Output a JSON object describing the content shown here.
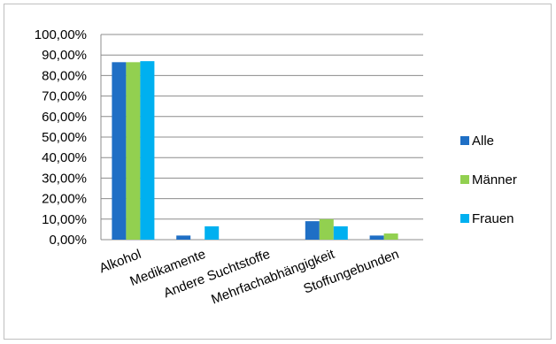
{
  "chart_data": {
    "type": "bar",
    "categories": [
      "Alkohol",
      "Medikamente",
      "Andere Suchtstoffe",
      "Mehrfachabhängigkeit",
      "Stoffungebunden"
    ],
    "series": [
      {
        "name": "Alle",
        "color": "#1f6fc5",
        "values": [
          86.5,
          2.0,
          0.0,
          9.0,
          2.0
        ]
      },
      {
        "name": "Männer",
        "color": "#92d050",
        "values": [
          86.5,
          0.0,
          0.0,
          10.0,
          3.0
        ]
      },
      {
        "name": "Frauen",
        "color": "#00b0f0",
        "values": [
          87.0,
          6.5,
          0.0,
          6.5,
          0.0
        ]
      }
    ],
    "ylim": [
      0,
      100
    ],
    "yticks": [
      "0,00%",
      "10,00%",
      "20,00%",
      "30,00%",
      "40,00%",
      "50,00%",
      "60,00%",
      "70,00%",
      "80,00%",
      "90,00%",
      "100,00%"
    ],
    "grid": true,
    "legend_position": "right",
    "title": "",
    "xlabel": "",
    "ylabel": ""
  }
}
